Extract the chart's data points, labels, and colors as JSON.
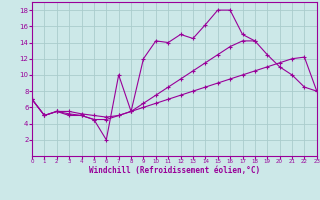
{
  "xlabel": "Windchill (Refroidissement éolien,°C)",
  "bg_color": "#cce8e8",
  "grid_color": "#aacccc",
  "line_color": "#990099",
  "xlim": [
    0,
    23
  ],
  "ylim": [
    0,
    19
  ],
  "xticks": [
    0,
    1,
    2,
    3,
    4,
    5,
    6,
    7,
    8,
    9,
    10,
    11,
    12,
    13,
    14,
    15,
    16,
    17,
    18,
    19,
    20,
    21,
    22,
    23
  ],
  "yticks": [
    2,
    4,
    6,
    8,
    10,
    12,
    14,
    16,
    18
  ],
  "line1_x": [
    0,
    1,
    2,
    3,
    4,
    5,
    6,
    7,
    8,
    9,
    10,
    11,
    12,
    13,
    14,
    15,
    16,
    17,
    18
  ],
  "line1_y": [
    7,
    5,
    5.5,
    5,
    5,
    4.5,
    2,
    10,
    5.5,
    12,
    14.2,
    14.0,
    15.0,
    14.5,
    16.2,
    18.0,
    18.0,
    15.0,
    14.2
  ],
  "line2_x": [
    0,
    1,
    2,
    3,
    4,
    5,
    6,
    7,
    8,
    9,
    10,
    11,
    12,
    13,
    14,
    15,
    16,
    17,
    18,
    19,
    20,
    21,
    22,
    23
  ],
  "line2_y": [
    7,
    5,
    5.5,
    5.2,
    5.0,
    4.5,
    4.5,
    5.0,
    5.5,
    6.5,
    7.5,
    8.5,
    9.5,
    10.5,
    11.5,
    12.5,
    13.5,
    14.2,
    14.2,
    12.5,
    11.0,
    10.0,
    8.5,
    8.0
  ],
  "line3_x": [
    0,
    1,
    2,
    3,
    4,
    5,
    6,
    7,
    8,
    9,
    10,
    11,
    12,
    13,
    14,
    15,
    16,
    17,
    18,
    19,
    20,
    21,
    22,
    23
  ],
  "line3_y": [
    7,
    5,
    5.5,
    5.5,
    5.2,
    5.0,
    4.8,
    5.0,
    5.5,
    6.0,
    6.5,
    7.0,
    7.5,
    8.0,
    8.5,
    9.0,
    9.5,
    10.0,
    10.5,
    11.0,
    11.5,
    12.0,
    12.2,
    8.0
  ]
}
